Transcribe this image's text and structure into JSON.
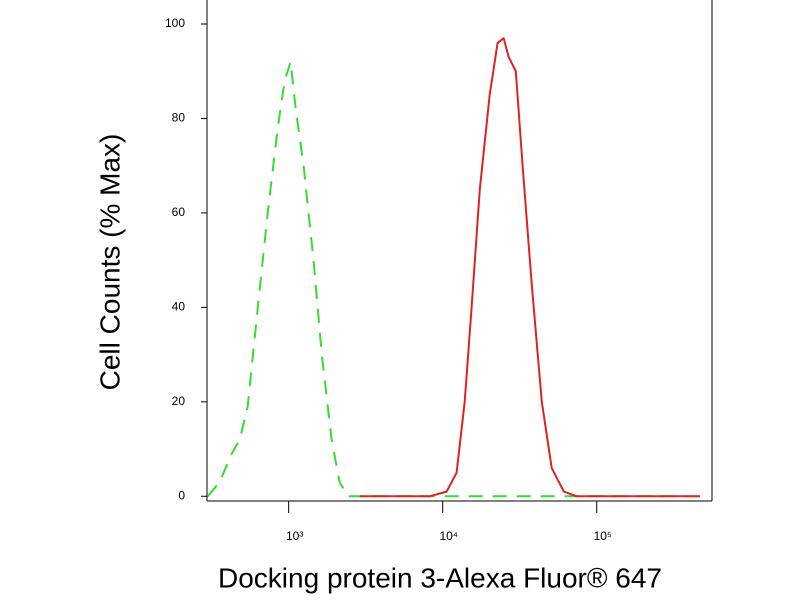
{
  "chart_data": {
    "type": "line",
    "x_label": "Docking protein 3-Alexa Fluor® 647",
    "y_label": "Cell Counts (% Max)",
    "xscale": "log",
    "xlim": [
      295,
      560000
    ],
    "ylim": [
      -1,
      100
    ],
    "xticks": [
      {
        "value": 1000,
        "label": "10³"
      },
      {
        "value": 10000,
        "label": "10⁴"
      },
      {
        "value": 100000,
        "label": "10⁵"
      }
    ],
    "yticks": [
      0,
      20,
      40,
      60,
      80,
      100
    ],
    "series": [
      {
        "color": "#33dd33",
        "dash": true,
        "x": [
          298,
          356,
          427,
          481,
          542,
          630,
          731,
          849,
          942,
          1030,
          1110,
          1250,
          1450,
          1640,
          1900,
          2140,
          2420,
          467000
        ],
        "values": [
          0,
          3,
          9,
          12,
          19,
          40,
          60,
          78,
          88,
          92,
          82,
          70,
          50,
          30,
          12,
          3,
          0,
          0
        ]
      },
      {
        "color": "#dd2222",
        "dash": false,
        "x": [
          2890,
          8240,
          10600,
          12300,
          13900,
          15400,
          17400,
          20200,
          22700,
          24900,
          26800,
          29800,
          33000,
          37800,
          44000,
          51000,
          61100,
          74100,
          467000
        ],
        "values": [
          0,
          0,
          1,
          5,
          20,
          40,
          65,
          85,
          96,
          97,
          93,
          90,
          70,
          45,
          20,
          6,
          1,
          0,
          0
        ]
      }
    ]
  }
}
